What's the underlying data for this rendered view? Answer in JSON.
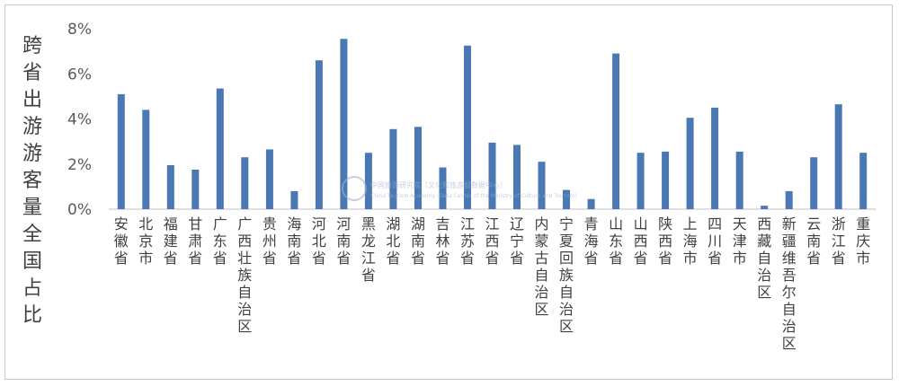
{
  "chart_data": {
    "type": "bar",
    "title": "",
    "xlabel": "",
    "ylabel": "跨省出游游客量全国占比",
    "ylim": [
      0,
      8
    ],
    "yticks": [
      "0%",
      "2%",
      "4%",
      "6%",
      "8%"
    ],
    "grid": false,
    "legend": "none",
    "bar_color": "#4a78b5",
    "categories": [
      "安徽省",
      "北京市",
      "福建省",
      "甘肃省",
      "广东省",
      "广西壮族自治区",
      "贵州省",
      "海南省",
      "河北省",
      "河南省",
      "黑龙江省",
      "湖北省",
      "湖南省",
      "吉林省",
      "江苏省",
      "江西省",
      "辽宁省",
      "内蒙古自治区",
      "宁夏回族自治区",
      "青海省",
      "山东省",
      "山西省",
      "陕西省",
      "上海市",
      "四川省",
      "天津市",
      "西藏自治区",
      "新疆维吾尔自治区",
      "云南省",
      "浙江省",
      "重庆市"
    ],
    "values": [
      5.1,
      4.4,
      1.95,
      1.75,
      5.35,
      2.3,
      2.65,
      0.8,
      6.6,
      7.55,
      2.5,
      3.55,
      3.65,
      1.85,
      7.25,
      2.95,
      2.85,
      2.1,
      0.85,
      0.45,
      6.9,
      2.5,
      2.55,
      4.05,
      4.5,
      2.55,
      0.15,
      0.8,
      2.3,
      4.65,
      2.5
    ]
  },
  "watermark": {
    "line1": "中国旅游研究院（文化和旅游部数据中心）",
    "line2": "China Tourism Academy (Data Center of the Ministry of Culture and Tourism)"
  }
}
